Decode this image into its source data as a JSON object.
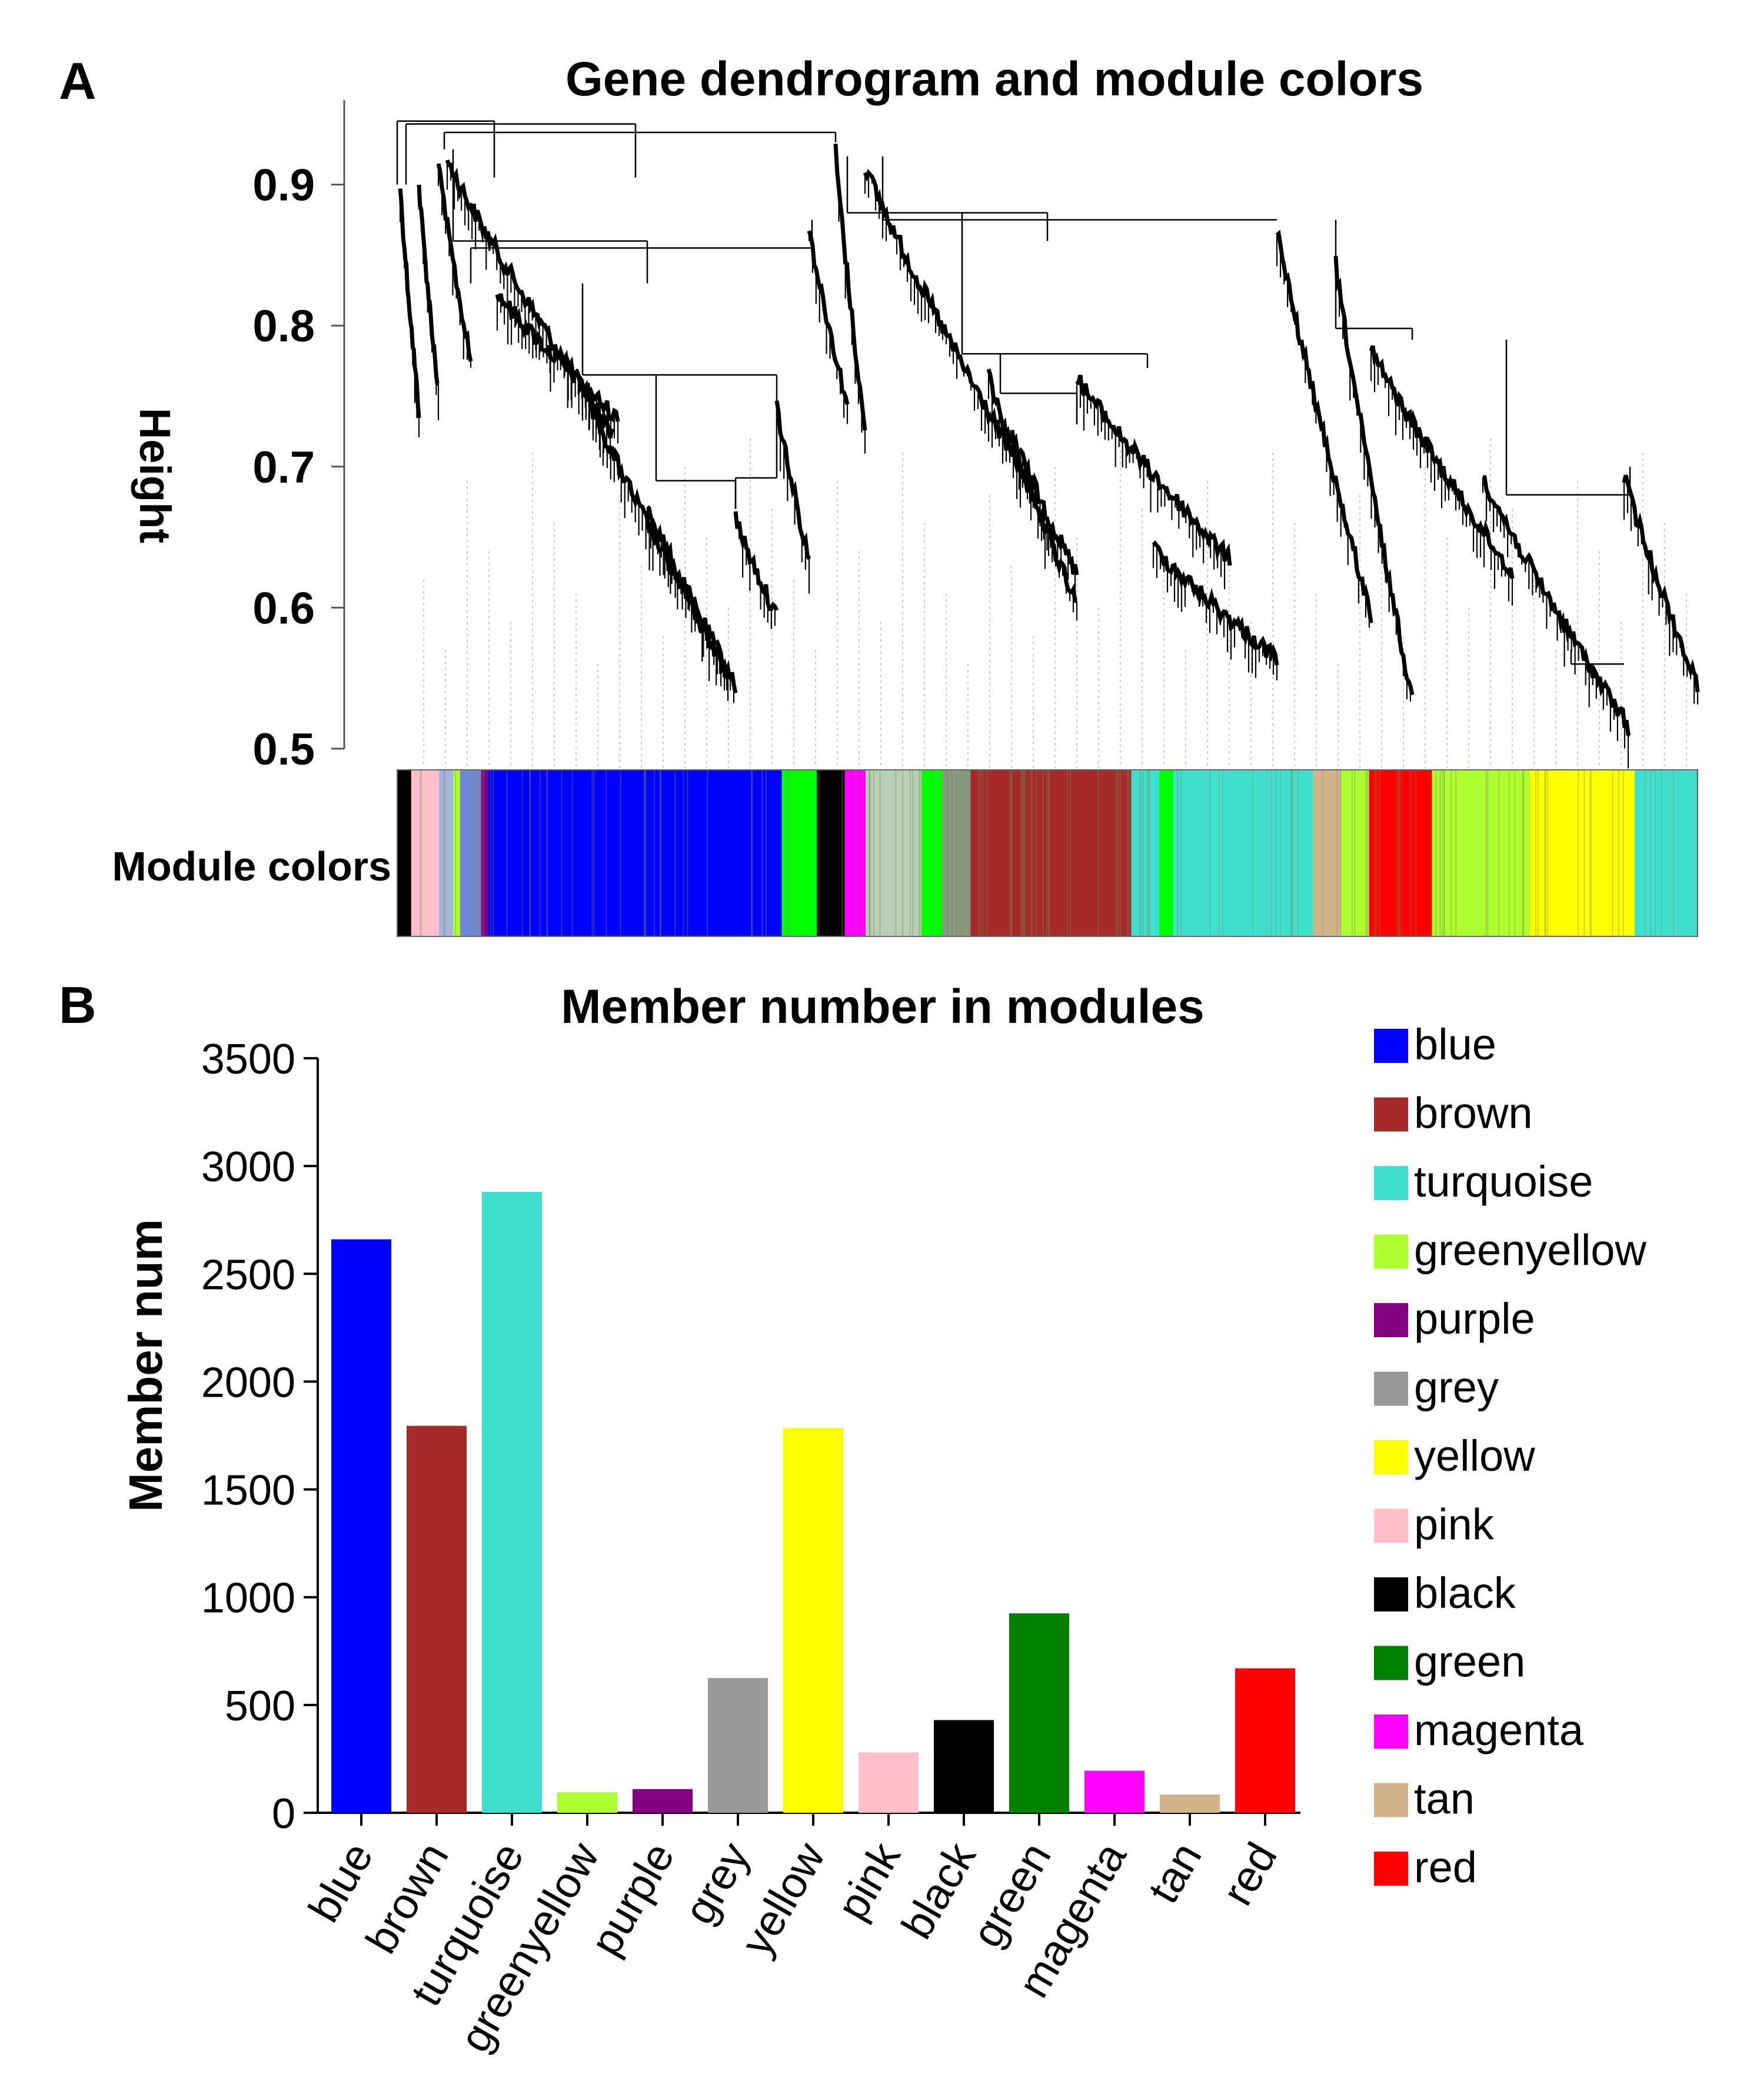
{
  "panels": {
    "a": {
      "letter": "A"
    },
    "b": {
      "letter": "B"
    }
  },
  "chart_data": [
    {
      "type": "dendrogram",
      "title": "Gene dendrogram and module colors",
      "ylabel": "Height",
      "ylim": [
        0.5,
        0.95
      ],
      "yticks": [
        0.5,
        0.6,
        0.7,
        0.8,
        0.9
      ],
      "ytick_labels": [
        "0.5",
        "0.6",
        "0.7",
        "0.8",
        "0.9"
      ],
      "color_bar_label": "Module colors",
      "color_bar_segments": [
        {
          "color": "#000000",
          "w": 2
        },
        {
          "color": "#ffc0cb",
          "w": 4
        },
        {
          "color": "#a2b6e0",
          "w": 2
        },
        {
          "color": "#adff2f",
          "w": 1
        },
        {
          "color": "#6f87d8",
          "w": 3
        },
        {
          "color": "#800080",
          "w": 1
        },
        {
          "color": "#0000ff",
          "w": 42
        },
        {
          "color": "#00ff00",
          "w": 5
        },
        {
          "color": "#000000",
          "w": 4
        },
        {
          "color": "#ff00ff",
          "w": 3
        },
        {
          "color": "#b7cfb2",
          "w": 8
        },
        {
          "color": "#00ff00",
          "w": 3
        },
        {
          "color": "#8a9a7e",
          "w": 4
        },
        {
          "color": "#a52a2a",
          "w": 23
        },
        {
          "color": "#40e0d0",
          "w": 4
        },
        {
          "color": "#00ff00",
          "w": 2
        },
        {
          "color": "#40e0d0",
          "w": 20
        },
        {
          "color": "#d2b48c",
          "w": 4
        },
        {
          "color": "#adff2f",
          "w": 4
        },
        {
          "color": "#ff0000",
          "w": 9
        },
        {
          "color": "#adff2f",
          "w": 14
        },
        {
          "color": "#ffff00",
          "w": 15
        },
        {
          "color": "#40e0d0",
          "w": 9
        }
      ]
    },
    {
      "type": "bar",
      "title": "Member number in modules",
      "xlabel": "",
      "ylabel": "Member num",
      "ylim": [
        0,
        3500
      ],
      "yticks": [
        0,
        500,
        1000,
        1500,
        2000,
        2500,
        3000,
        3500
      ],
      "ytick_labels": [
        "0",
        "500",
        "1000",
        "1500",
        "2000",
        "2500",
        "3000",
        "3500"
      ],
      "categories": [
        "blue",
        "brown",
        "turquoise",
        "greenyellow",
        "purple",
        "grey",
        "yellow",
        "pink",
        "black",
        "green",
        "magenta",
        "tan",
        "red"
      ],
      "values": [
        2660,
        1795,
        2880,
        95,
        110,
        625,
        1785,
        280,
        430,
        925,
        195,
        85,
        670
      ],
      "colors": [
        "#0000ff",
        "#a52a2a",
        "#40e0d0",
        "#adff2f",
        "#800080",
        "#999999",
        "#ffff00",
        "#ffc0cb",
        "#000000",
        "#008000",
        "#ff00ff",
        "#d2b48c",
        "#ff0000"
      ],
      "legend": {
        "entries": [
          "blue",
          "brown",
          "turquoise",
          "greenyellow",
          "purple",
          "grey",
          "yellow",
          "pink",
          "black",
          "green",
          "magenta",
          "tan",
          "red"
        ],
        "placement": "right"
      }
    }
  ]
}
